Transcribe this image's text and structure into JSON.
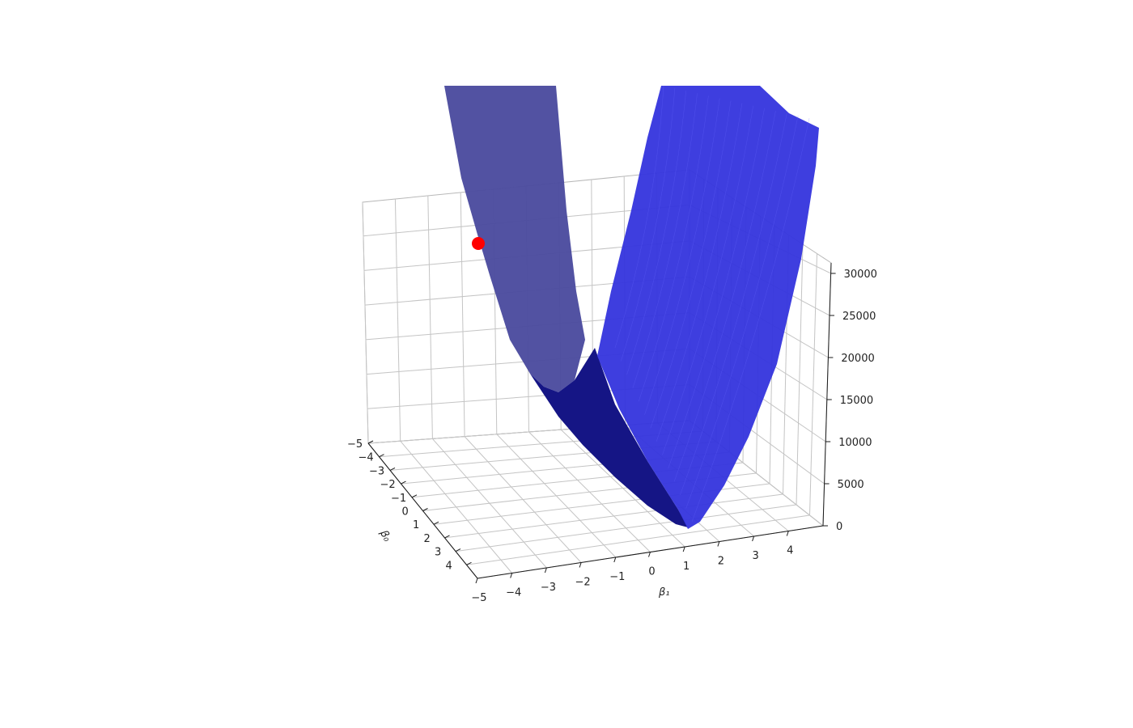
{
  "chart_data": {
    "type": "surface",
    "title": "",
    "xlabel": "β₁",
    "ylabel": "β₀",
    "zlabel": "",
    "x_ticks": [
      -5,
      -4,
      -3,
      -2,
      -1,
      0,
      1,
      2,
      3,
      4
    ],
    "x_tick_labels": [
      "−5",
      "−4",
      "−3",
      "−2",
      "−1",
      "0",
      "1",
      "2",
      "3",
      "4"
    ],
    "y_ticks": [
      -5,
      -4,
      -3,
      -2,
      -1,
      0,
      1,
      2,
      3,
      4
    ],
    "y_tick_labels": [
      "−5",
      "−4",
      "−3",
      "−2",
      "−1",
      "0",
      "1",
      "2",
      "3",
      "4"
    ],
    "z_ticks": [
      0,
      5000,
      10000,
      15000,
      20000,
      25000,
      30000
    ],
    "z_tick_labels": [
      "0",
      "5000",
      "10000",
      "15000",
      "20000",
      "25000",
      "30000"
    ],
    "xlim": [
      -5,
      5
    ],
    "ylim": [
      -5,
      5
    ],
    "zlim": [
      0,
      30000
    ],
    "grid": true,
    "surface": {
      "function": "sum of squared errors over (β₀, β₁)",
      "minimum": {
        "beta0": 1,
        "beta1": 0,
        "z": 0
      },
      "color": "#1010e0"
    },
    "marker": {
      "beta0": -5,
      "beta1": -5,
      "z": 42000,
      "color": "#ff0000"
    }
  }
}
